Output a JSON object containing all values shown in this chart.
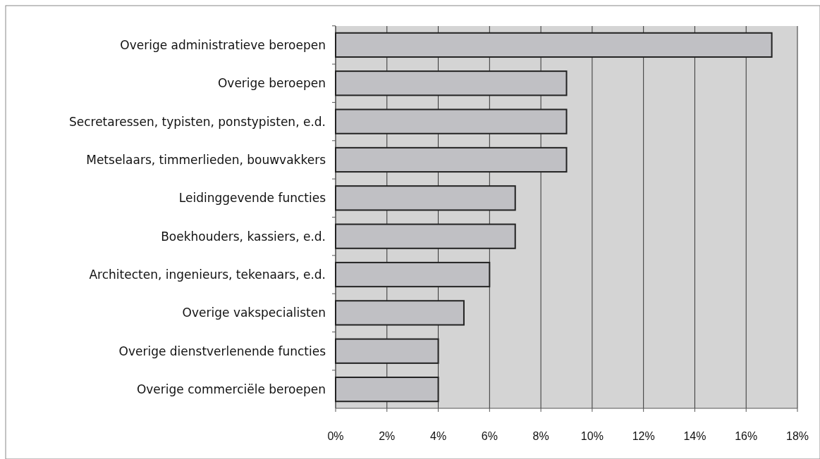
{
  "chart_data": {
    "type": "bar",
    "orientation": "horizontal",
    "categories": [
      "Overige administratieve beroepen",
      "Overige beroepen",
      "Secretaressen, typisten, ponstypisten, e.d.",
      "Metselaars, timmerlieden, bouwvakkers",
      "Leidinggevende functies",
      "Boekhouders, kassiers, e.d.",
      "Architecten, ingenieurs, tekenaars, e.d.",
      "Overige vakspecialisten",
      "Overige dienstverlenende functies",
      "Overige commerciële beroepen"
    ],
    "values": [
      17,
      9,
      9,
      9,
      7,
      7,
      6,
      5,
      4,
      4
    ],
    "color": "#c0c0c4",
    "xlim": [
      0,
      18
    ],
    "xticks": [
      {
        "value": 0,
        "label": "0%"
      },
      {
        "value": 2,
        "label": "2%"
      },
      {
        "value": 4,
        "label": "4%"
      },
      {
        "value": 6,
        "label": "6%"
      },
      {
        "value": 8,
        "label": "8%"
      },
      {
        "value": 10,
        "label": "10%"
      },
      {
        "value": 12,
        "label": "12%"
      },
      {
        "value": 14,
        "label": "14%"
      },
      {
        "value": 16,
        "label": "16%"
      },
      {
        "value": 18,
        "label": "18%"
      }
    ],
    "grid": "x"
  }
}
